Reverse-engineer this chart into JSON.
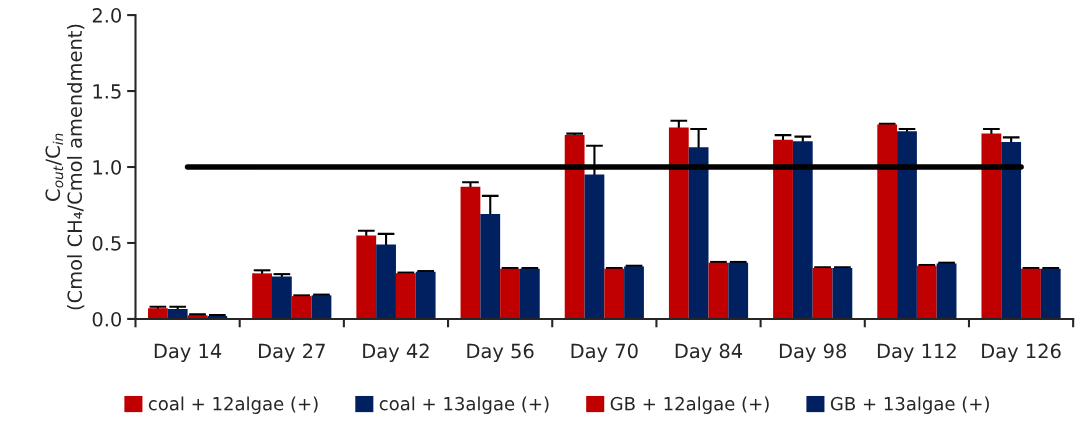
{
  "chart_data": {
    "type": "bar",
    "ylabel": "C$_{out}$/C$_{in}$\n(Cmol CH₄/Cmol amendment)",
    "categories": [
      "Day 14",
      "Day 27",
      "Day 42",
      "Day 56",
      "Day 70",
      "Day 84",
      "Day 98",
      "Day 112",
      "Day 126"
    ],
    "series": [
      {
        "name": "coal + 12algae (+)",
        "color": "#c00000",
        "values": [
          0.07,
          0.3,
          0.55,
          0.87,
          1.21,
          1.26,
          1.18,
          1.28,
          1.22
        ],
        "errors": [
          0.01,
          0.02,
          0.03,
          0.03,
          0.01,
          0.045,
          0.03,
          0.005,
          0.03
        ]
      },
      {
        "name": "coal + 13algae (+)",
        "color": "#002060",
        "values": [
          0.065,
          0.28,
          0.49,
          0.69,
          0.95,
          1.13,
          1.17,
          1.235,
          1.165
        ],
        "errors": [
          0.015,
          0.015,
          0.07,
          0.12,
          0.19,
          0.12,
          0.03,
          0.015,
          0.03
        ]
      },
      {
        "name": "GB + 12algae (+)",
        "color": "#c00000",
        "values": [
          0.025,
          0.15,
          0.3,
          0.33,
          0.33,
          0.37,
          0.335,
          0.35,
          0.33
        ],
        "errors": [
          0.005,
          0.005,
          0.005,
          0.005,
          0.005,
          0.005,
          0.005,
          0.005,
          0.005
        ]
      },
      {
        "name": "GB + 13algae (+)",
        "color": "#002060",
        "values": [
          0.02,
          0.155,
          0.31,
          0.33,
          0.345,
          0.37,
          0.335,
          0.365,
          0.33
        ],
        "errors": [
          0.005,
          0.005,
          0.005,
          0.005,
          0.005,
          0.005,
          0.005,
          0.005,
          0.005
        ]
      }
    ],
    "ylim": [
      0,
      2.0
    ],
    "yticks": [
      {
        "value": 0,
        "label": "0.0"
      },
      {
        "value": 0.5,
        "label": "0.5"
      },
      {
        "value": 1.0,
        "label": "1.0"
      },
      {
        "value": 1.5,
        "label": "1.5"
      },
      {
        "value": 2.0,
        "label": "2.0"
      }
    ],
    "ref_lines": [
      {
        "axis": "y",
        "value": 1.0,
        "color": "#000000"
      }
    ],
    "grid": false,
    "legend": "bottom"
  }
}
